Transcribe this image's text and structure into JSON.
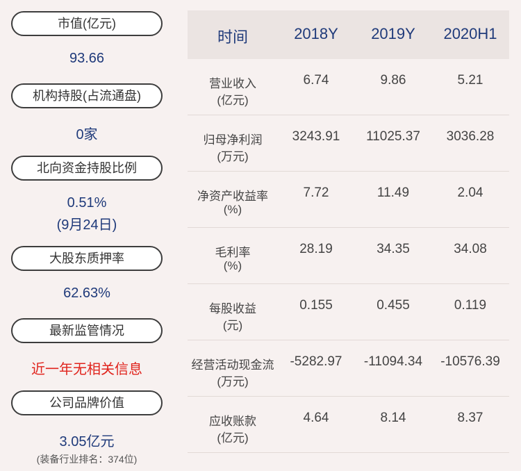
{
  "left": [
    {
      "label": "市值(亿元)",
      "value": "93.66"
    },
    {
      "label": "机构持股(占流通盘)",
      "value": "0家"
    },
    {
      "label": "北向资金持股比例",
      "value": "0.51%",
      "note": "(9月24日)"
    },
    {
      "label": "大股东质押率",
      "value": "62.63%"
    },
    {
      "label": "最新监管情况",
      "value": "近一年无相关信息",
      "alert": true
    },
    {
      "label": "公司品牌价值",
      "value": "3.05亿元",
      "note": "(装备行业排名：374位)"
    }
  ],
  "table": {
    "header": [
      "时间",
      "2018Y",
      "2019Y",
      "2020H1"
    ],
    "rows": [
      [
        [
          "营业收入",
          "(亿元)"
        ],
        "6.74",
        "9.86",
        "5.21"
      ],
      [
        [
          "归母净利润",
          "(万元)"
        ],
        "3243.91",
        "11025.37",
        "3036.28"
      ],
      [
        [
          "净资产收益率",
          "(%)"
        ],
        "7.72",
        "11.49",
        "2.04"
      ],
      [
        [
          "毛利率",
          "(%)"
        ],
        "28.19",
        "34.35",
        "34.08"
      ],
      [
        [
          "每股收益",
          "(元)"
        ],
        "0.155",
        "0.455",
        "0.119"
      ],
      [
        [
          "经营活动现金流",
          "(万元)"
        ],
        "-5282.97",
        "-11094.34",
        "-10576.39"
      ],
      [
        [
          "应收账款",
          "(亿元)"
        ],
        "4.64",
        "8.14",
        "8.37"
      ]
    ]
  }
}
